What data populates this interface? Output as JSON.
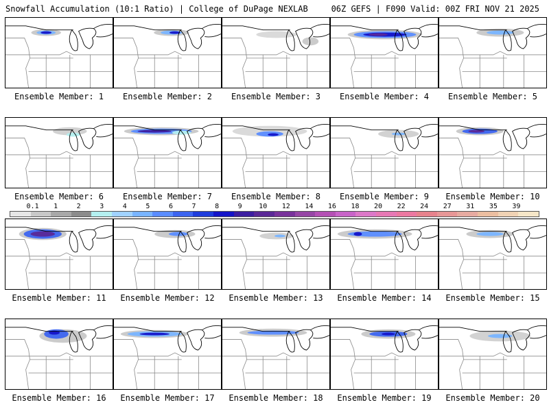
{
  "header": {
    "left_title": "Snowfall Accumulation (10:1 Ratio) | College of DuPage NEXLAB",
    "right_title": "06Z GEFS | F090 Valid: 00Z FRI NOV 21 2025"
  },
  "members": [
    {
      "label": "Ensemble Member: 1"
    },
    {
      "label": "Ensemble Member: 2"
    },
    {
      "label": "Ensemble Member: 3"
    },
    {
      "label": "Ensemble Member: 4"
    },
    {
      "label": "Ensemble Member: 5"
    },
    {
      "label": "Ensemble Member: 6"
    },
    {
      "label": "Ensemble Member: 7"
    },
    {
      "label": "Ensemble Member: 8"
    },
    {
      "label": "Ensemble Member: 9"
    },
    {
      "label": "Ensemble Member: 10"
    },
    {
      "label": "Ensemble Member: 11"
    },
    {
      "label": "Ensemble Member: 12"
    },
    {
      "label": "Ensemble Member: 13"
    },
    {
      "label": "Ensemble Member: 14"
    },
    {
      "label": "Ensemble Member: 15"
    },
    {
      "label": "Ensemble Member: 16"
    },
    {
      "label": "Ensemble Member: 17"
    },
    {
      "label": "Ensemble Member: 18"
    },
    {
      "label": "Ensemble Member: 19"
    },
    {
      "label": "Ensemble Member: 20"
    }
  ],
  "colorbar": {
    "tick_labels": [
      "0.1",
      "1",
      "2",
      "3",
      "4",
      "5",
      "6",
      "7",
      "8",
      "9",
      "10",
      "12",
      "14",
      "16",
      "18",
      "20",
      "22",
      "24",
      "27",
      "31",
      "35",
      "39"
    ],
    "colors": [
      "#e6e6e6",
      "#c8c8c8",
      "#a8a8a8",
      "#8c8c8c",
      "#b4f0f0",
      "#a0d2ff",
      "#78b4ff",
      "#5a8cff",
      "#3c64f0",
      "#1e3cdc",
      "#1414c8",
      "#3c1ea0",
      "#5a2896",
      "#78329b",
      "#9646a5",
      "#b450b4",
      "#c864c8",
      "#dc78c8",
      "#e678b4",
      "#eb78a0",
      "#e6828c",
      "#e69696",
      "#e6aaa0",
      "#ebbea0",
      "#f0d2b4",
      "#f5e6c8"
    ]
  }
}
